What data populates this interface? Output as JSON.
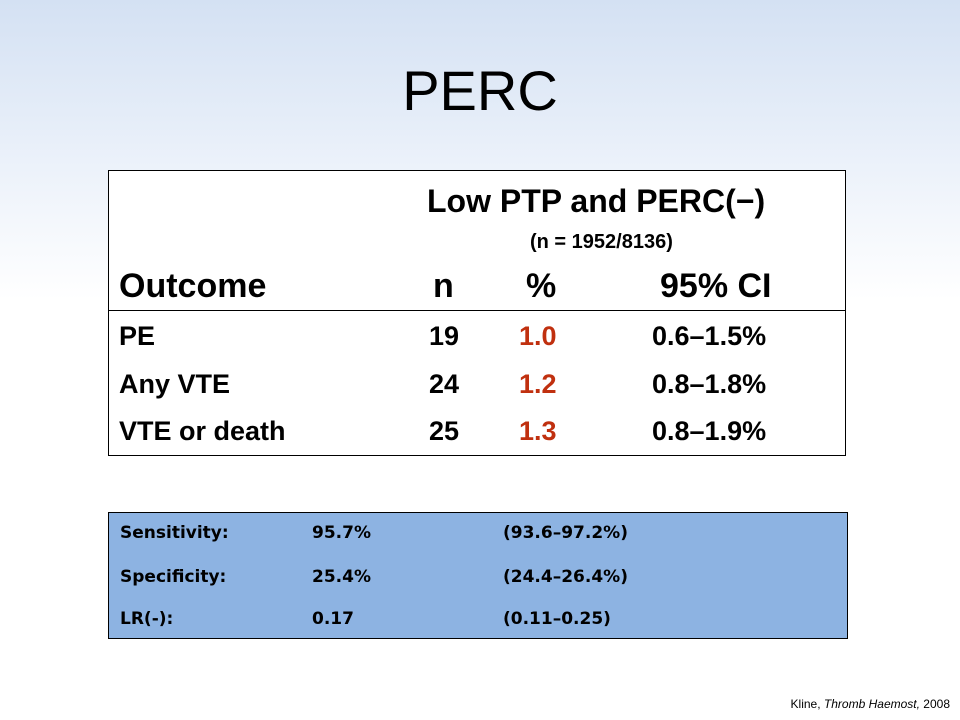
{
  "title": "PERC",
  "table": {
    "group_header": "Low PTP and PERC(−)",
    "group_subheader": "(n = 1952/8136)",
    "columns": [
      "Outcome",
      "n",
      "%",
      "95% CI"
    ],
    "rows": [
      {
        "outcome": "PE",
        "n": "19",
        "pct": "1.0",
        "ci": "0.6–1.5%"
      },
      {
        "outcome": "Any VTE",
        "n": "24",
        "pct": "1.2",
        "ci": "0.8–1.8%"
      },
      {
        "outcome": "VTE or death",
        "n": "25",
        "pct": "1.3",
        "ci": "0.8–1.9%"
      }
    ],
    "highlight_color": "#c0300f"
  },
  "stats": {
    "background_color": "#8db3e2",
    "rows": [
      {
        "label": "Sensitivity:",
        "value": "95.7%",
        "ci": "(93.6–97.2%)"
      },
      {
        "label": "Specificity:",
        "value": "25.4%",
        "ci": "(24.4–26.4%)"
      },
      {
        "label": "LR(-):",
        "value": "0.17",
        "ci": "(0.11–0.25)"
      }
    ]
  },
  "citation": {
    "author": "Kline,",
    "journal": "Thromb Haemost,",
    "year": "2008"
  }
}
